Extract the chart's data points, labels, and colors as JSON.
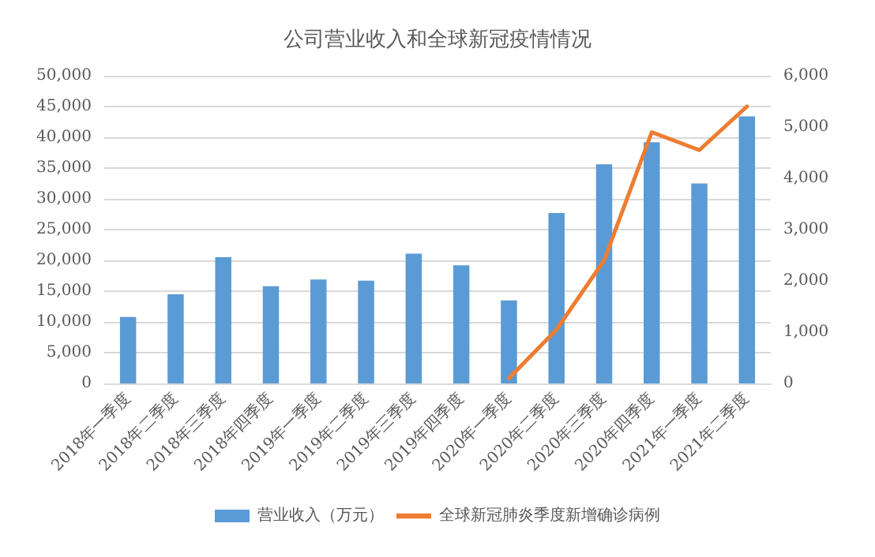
{
  "chart_data": {
    "type": "bar",
    "title": "公司营业收入和全球新冠疫情情况",
    "categories": [
      "2018年一季度",
      "2018年二季度",
      "2018年三季度",
      "2018年四季度",
      "2019年一季度",
      "2019年二季度",
      "2019年三季度",
      "2019年四季度",
      "2020年一季度",
      "2020年二季度",
      "2020年三季度",
      "2020年四季度",
      "2021年一季度",
      "2021年二季度"
    ],
    "series": [
      {
        "name": "营业收入（万元）",
        "color": "#5b9bd5",
        "values": [
          10800,
          14500,
          20500,
          15800,
          16900,
          16700,
          21100,
          19200,
          13500,
          27700,
          35600,
          39200,
          32500,
          43400
        ]
      },
      {
        "name": "全球新冠肺炎季度新增确诊病例",
        "type": "line",
        "axis": "y2",
        "color": "#ed7d31",
        "values": [
          null,
          null,
          null,
          null,
          null,
          null,
          null,
          null,
          100,
          1050,
          2400,
          4900,
          4550,
          5400
        ]
      }
    ],
    "ylim": [
      0,
      50000
    ],
    "yticks": [
      0,
      {
        "value": 5000,
        "label": "5,000"
      },
      {
        "value": 10000,
        "label": "10,000"
      },
      {
        "value": 15000,
        "label": "15,000"
      },
      {
        "value": 20000,
        "label": "20,000"
      },
      {
        "value": 25000,
        "label": "25,000"
      },
      {
        "value": 30000,
        "label": "30,000"
      },
      {
        "value": 35000,
        "label": "35,000"
      },
      {
        "value": 40000,
        "label": "40,000"
      },
      {
        "value": 45000,
        "label": "45,000"
      },
      {
        "value": 50000,
        "label": "50,000"
      }
    ],
    "y2lim": [
      0,
      6000
    ],
    "y2ticks": [
      0,
      {
        "value": 1000,
        "label": "1,000"
      },
      {
        "value": 2000,
        "label": "2,000"
      },
      {
        "value": 3000,
        "label": "3,000"
      },
      {
        "value": 4000,
        "label": "4,000"
      },
      {
        "value": 5000,
        "label": "5,000"
      },
      {
        "value": 6000,
        "label": "6,000"
      }
    ],
    "grid": "y",
    "legend": "bottom",
    "marker": "none",
    "line_style": "solid"
  }
}
